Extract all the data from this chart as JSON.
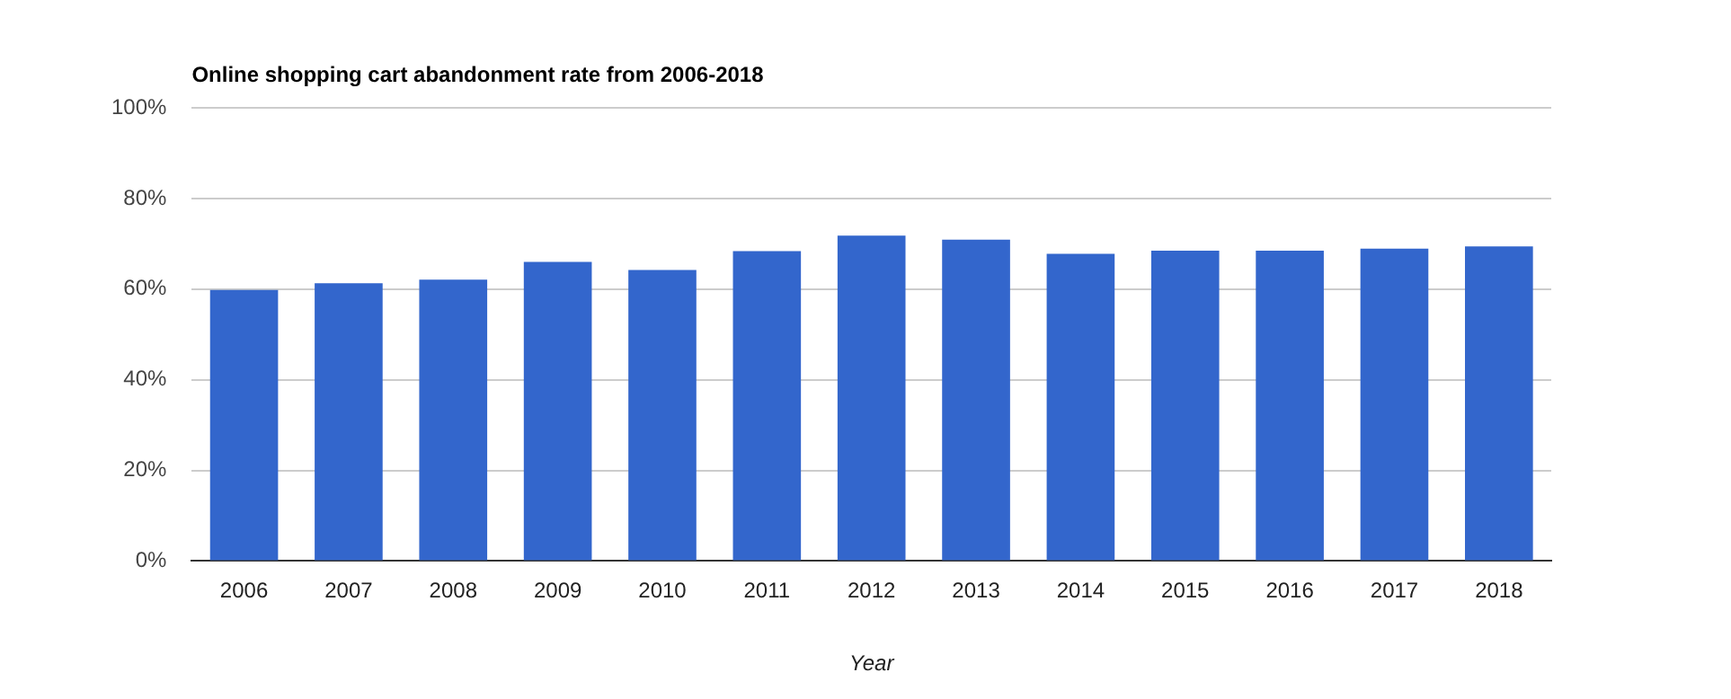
{
  "chart_data": {
    "type": "bar",
    "title": "Online shopping cart abandonment rate from 2006-2018",
    "xlabel": "Year",
    "categories": [
      "2006",
      "2007",
      "2008",
      "2009",
      "2010",
      "2011",
      "2012",
      "2013",
      "2014",
      "2015",
      "2016",
      "2017",
      "2018"
    ],
    "values": [
      59.8,
      61.3,
      62.1,
      66.0,
      64.2,
      68.4,
      71.8,
      70.9,
      67.8,
      68.5,
      68.5,
      68.9,
      69.4
    ],
    "color": "#3366cc",
    "ylim": [
      0,
      100
    ],
    "yticks": [
      {
        "value": 0,
        "label": "0%"
      },
      {
        "value": 20,
        "label": "20%"
      },
      {
        "value": 40,
        "label": "40%"
      },
      {
        "value": 60,
        "label": "60%"
      },
      {
        "value": 80,
        "label": "80%"
      },
      {
        "value": 100,
        "label": "100%"
      }
    ],
    "grid": "y",
    "legend": false
  }
}
